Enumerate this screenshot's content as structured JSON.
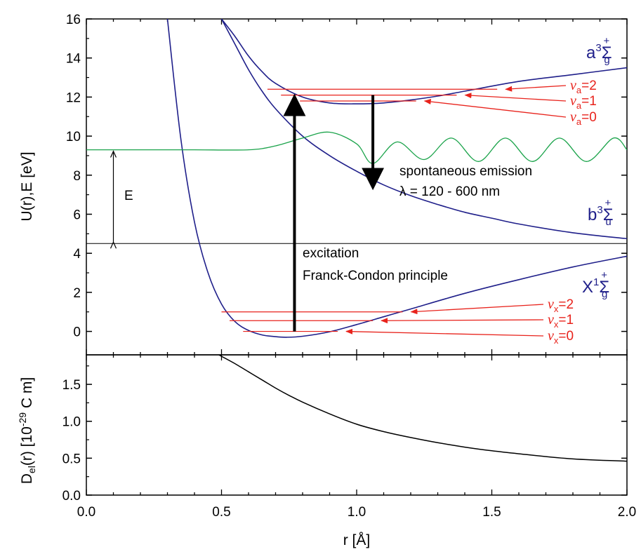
{
  "chart_data": [
    {
      "type": "line",
      "ylabel": "U(r),E [eV]",
      "xlim": [
        0.0,
        2.0
      ],
      "ylim": [
        -1.2,
        16
      ],
      "y_ticks": [
        "0",
        "2",
        "4",
        "6",
        "8",
        "10",
        "12",
        "14",
        "16"
      ],
      "grid": false,
      "series": [
        {
          "name": "X1Σg+",
          "color": "#1f1f8a",
          "x": [
            0.3,
            0.35,
            0.4,
            0.45,
            0.5,
            0.55,
            0.6,
            0.65,
            0.7,
            0.74,
            0.8,
            0.9,
            1.0,
            1.1,
            1.2,
            1.4,
            1.6,
            1.8,
            2.0
          ],
          "y": [
            16.0,
            9.8,
            5.6,
            3.0,
            1.4,
            0.5,
            0.05,
            -0.18,
            -0.27,
            -0.3,
            -0.25,
            -0.02,
            0.35,
            0.75,
            1.15,
            1.95,
            2.65,
            3.3,
            3.85
          ]
        },
        {
          "name": "a3Σg+",
          "color": "#1f1f8a",
          "x": [
            0.5,
            0.55,
            0.6,
            0.65,
            0.7,
            0.8,
            0.9,
            1.0,
            1.1,
            1.2,
            1.3,
            1.4,
            1.6,
            1.8,
            2.0
          ],
          "y": [
            16.0,
            15.1,
            14.1,
            13.3,
            12.7,
            12.0,
            11.7,
            11.65,
            11.7,
            11.85,
            12.05,
            12.3,
            12.8,
            13.15,
            13.5
          ]
        },
        {
          "name": "b3Σu+",
          "color": "#1f1f8a",
          "x": [
            0.5,
            0.55,
            0.6,
            0.65,
            0.7,
            0.8,
            0.9,
            1.0,
            1.1,
            1.2,
            1.3,
            1.4,
            1.5,
            1.6,
            1.8,
            2.0
          ],
          "y": [
            16.0,
            14.7,
            13.4,
            12.3,
            11.4,
            10.0,
            9.0,
            8.2,
            7.5,
            6.95,
            6.5,
            6.1,
            5.8,
            5.5,
            5.05,
            4.75
          ]
        },
        {
          "name": "E",
          "color": "#1aa34a",
          "x": [
            0.0,
            0.2,
            0.4,
            0.6,
            0.7,
            0.8,
            0.9,
            1.0,
            1.06,
            1.15,
            1.25,
            1.35,
            1.45,
            1.55,
            1.65,
            1.75,
            1.85,
            1.95,
            2.0
          ],
          "y": [
            9.3,
            9.3,
            9.3,
            9.3,
            9.5,
            9.9,
            10.2,
            9.6,
            8.6,
            9.7,
            8.8,
            9.9,
            8.7,
            9.9,
            8.7,
            9.9,
            8.7,
            9.9,
            9.3
          ]
        }
      ],
      "dissociation_level": 4.5,
      "vibrational_levels": [
        {
          "label": "v",
          "sub": "a",
          "value": "=2",
          "energy": 12.4,
          "x_range": [
            0.67,
            1.52
          ]
        },
        {
          "label": "v",
          "sub": "a",
          "value": "=1",
          "energy": 12.1,
          "x_range": [
            0.72,
            1.37
          ]
        },
        {
          "label": "v",
          "sub": "a",
          "value": "=0",
          "energy": 11.8,
          "x_range": [
            0.79,
            1.22
          ]
        },
        {
          "label": "v",
          "sub": "x",
          "value": "=2",
          "energy": 1.0,
          "x_range": [
            0.5,
            1.17
          ]
        },
        {
          "label": "v",
          "sub": "x",
          "value": "=1",
          "energy": 0.55,
          "x_range": [
            0.53,
            1.06
          ]
        },
        {
          "label": "v",
          "sub": "x",
          "value": "=0",
          "energy": 0.0,
          "x_range": [
            0.58,
            0.93
          ]
        }
      ],
      "arrows": [
        {
          "from": [
            0.77,
            0.0
          ],
          "to": [
            0.77,
            12.1
          ],
          "label": "excitation"
        },
        {
          "from": [
            1.06,
            12.1
          ],
          "to": [
            1.06,
            7.3
          ],
          "label": "spontaneous emission"
        },
        {
          "from": [
            0.1,
            4.5
          ],
          "to": [
            0.1,
            9.3
          ],
          "label": "E"
        }
      ],
      "annotations": {
        "excitation_line1": "excitation",
        "excitation_line2": "Franck-Condon principle",
        "emission_line1": "spontaneous emission",
        "emission_line2": "λ = 120 - 600 nm",
        "E_label": "E"
      },
      "state_labels": {
        "a": {
          "main": "a",
          "sup": "3",
          "sigma": "Σ",
          "sub": "g",
          "plus": "+"
        },
        "b": {
          "main": "b",
          "sup": "3",
          "sigma": "Σ",
          "sub": "u",
          "plus": "+"
        },
        "X": {
          "main": "X",
          "sup": "1",
          "sigma": "Σ",
          "sub": "g",
          "plus": "+"
        }
      }
    },
    {
      "type": "line",
      "ylabel_parts": {
        "D": "D",
        "sub": "el",
        "mid": "(r) [10",
        "exp": "-29",
        "tail": " C m]"
      },
      "xlabel": "r [Å]",
      "xlim": [
        0.0,
        2.0
      ],
      "ylim": [
        0.0,
        1.9
      ],
      "x_ticks": [
        "0.0",
        "0.5",
        "1.0",
        "1.5",
        "2.0"
      ],
      "y_ticks": [
        "0.0",
        "0.5",
        "1.0",
        "1.5"
      ],
      "grid": false,
      "series": [
        {
          "color": "#000000",
          "x": [
            0.49,
            0.55,
            0.6,
            0.65,
            0.7,
            0.75,
            0.8,
            0.9,
            1.0,
            1.1,
            1.2,
            1.3,
            1.4,
            1.5,
            1.6,
            1.8,
            2.0
          ],
          "y": [
            1.9,
            1.78,
            1.67,
            1.56,
            1.45,
            1.35,
            1.26,
            1.1,
            0.96,
            0.86,
            0.78,
            0.71,
            0.65,
            0.6,
            0.56,
            0.49,
            0.46
          ]
        }
      ]
    }
  ],
  "colors": {
    "curve": "#1f1f8a",
    "level": "#e8231c",
    "wave": "#1aa34a",
    "axis": "#000000"
  }
}
